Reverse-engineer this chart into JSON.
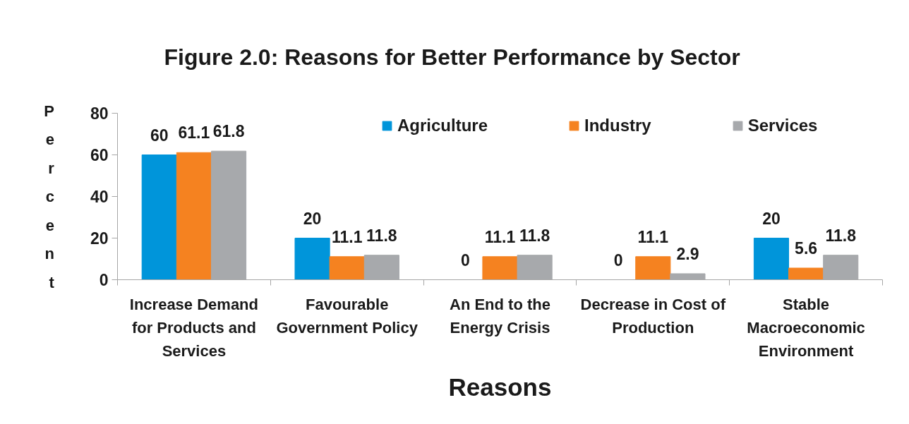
{
  "chart_data": {
    "type": "bar",
    "title": "Figure 2.0: Reasons for Better Performance by Sector",
    "xlabel": "Reasons",
    "ylabel": "Percent",
    "categories": [
      "Increase Demand for Products and Services",
      "Favourable Government Policy",
      "An End to the Energy Crisis",
      "Decrease in Cost of Production",
      "Stable Macroeconomic Environment"
    ],
    "series": [
      {
        "name": "Agriculture",
        "color": "#0095da",
        "values": [
          60,
          20,
          0,
          0,
          20
        ]
      },
      {
        "name": "Industry",
        "color": "#f58220",
        "values": [
          61.1,
          11.1,
          11.1,
          11.1,
          5.6
        ]
      },
      {
        "name": "Services",
        "color": "#a7a9ac",
        "values": [
          61.8,
          11.8,
          11.8,
          2.9,
          11.8
        ]
      }
    ],
    "ylim": [
      0,
      80
    ],
    "yticks": [
      0,
      20,
      40,
      60,
      80
    ],
    "data_labels": true,
    "legend": "top right",
    "grid": false
  }
}
